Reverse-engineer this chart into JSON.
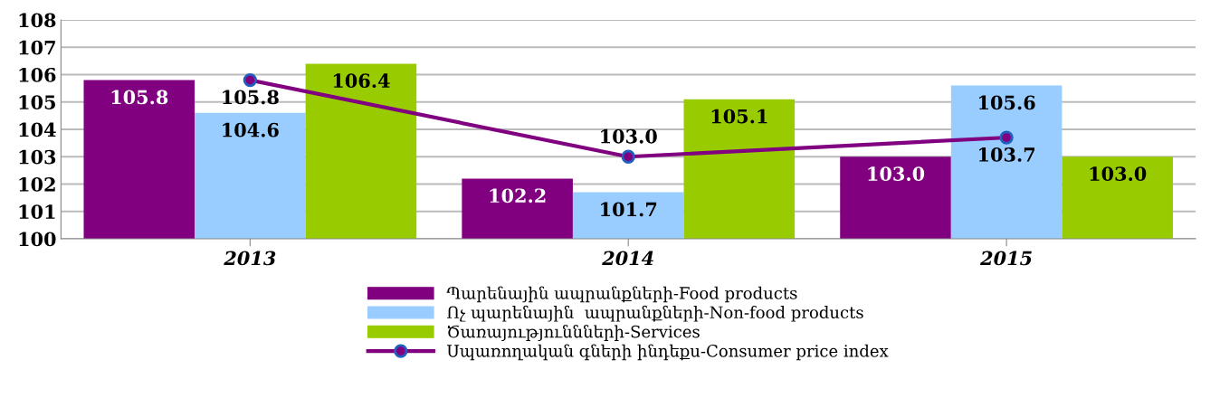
{
  "chart_data": {
    "type": "bar",
    "categories": [
      "2013",
      "2014",
      "2015"
    ],
    "series": [
      {
        "name": "Պարենային ապրանքների-Food products",
        "color": "#800080",
        "values": [
          105.8,
          102.2,
          103.0
        ],
        "value_labels": [
          "105.8",
          "102.2",
          "103.0"
        ]
      },
      {
        "name": "Ոչ պարենային  ապրանքների-Non-food products",
        "color": "#99ccff",
        "values": [
          104.6,
          101.7,
          105.6
        ],
        "value_labels": [
          "104.6",
          "101.7",
          "105.6"
        ]
      },
      {
        "name": "Ծառայություննների-Services",
        "color": "#99cc00",
        "values": [
          106.4,
          105.1,
          103.0
        ],
        "value_labels": [
          "106.4",
          "105.1",
          "103.0"
        ]
      },
      {
        "name": "Սպառողական գների ինդեքս-Consumer price index",
        "type": "line",
        "color": "#800080",
        "marker": "circle",
        "values": [
          105.8,
          103.0,
          103.7
        ],
        "value_labels": [
          "105.8",
          "103.0",
          "103.7"
        ]
      }
    ],
    "ylim": [
      100,
      108
    ],
    "yticks": [
      100,
      101,
      102,
      103,
      104,
      105,
      106,
      107,
      108
    ],
    "grid": "y",
    "legend": "bottom"
  }
}
